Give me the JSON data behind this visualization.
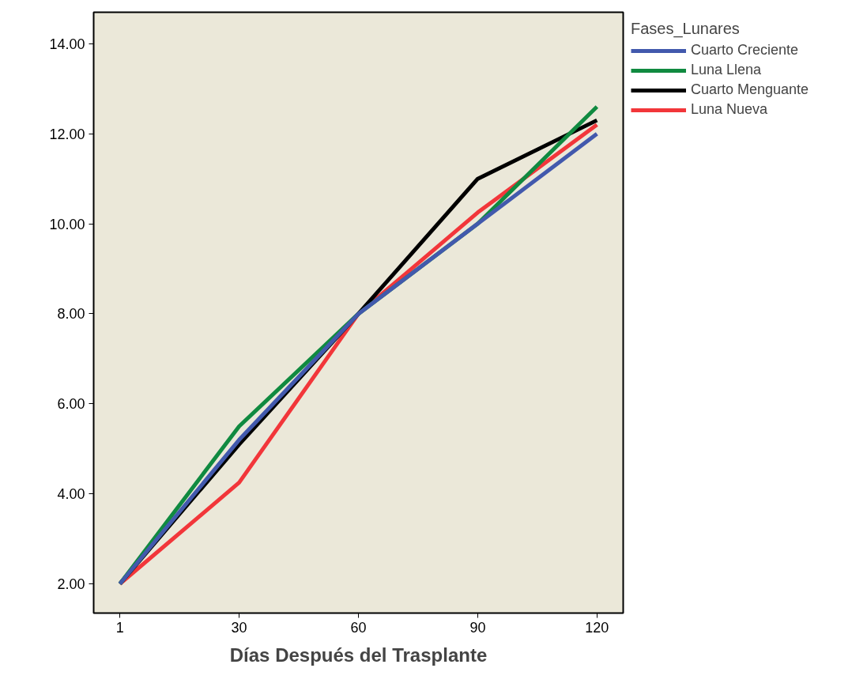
{
  "chart_data": {
    "type": "line",
    "xlabel": "Días Después del Trasplante",
    "legend_title": "Fases_Lunares",
    "legend": "right",
    "grid": false,
    "categories": [
      "1",
      "30",
      "60",
      "90",
      "120"
    ],
    "ylim": [
      1.35,
      14.7
    ],
    "yticks": [
      {
        "value": 2,
        "label": "2.00"
      },
      {
        "value": 4,
        "label": "4.00"
      },
      {
        "value": 6,
        "label": "6.00"
      },
      {
        "value": 8,
        "label": "8.00"
      },
      {
        "value": 10,
        "label": "10.00"
      },
      {
        "value": 12,
        "label": "12.00"
      },
      {
        "value": 14,
        "label": "14.00"
      }
    ],
    "line_style": "solid",
    "series": [
      {
        "name": "Cuarto Creciente",
        "color": "#4259ad",
        "values": [
          2,
          5.2,
          8,
          10,
          12
        ]
      },
      {
        "name": "Luna Llena",
        "color": "#108a40",
        "values": [
          2,
          5.5,
          8,
          10,
          12.6
        ]
      },
      {
        "name": "Cuarto Menguante",
        "color": "#000000",
        "values": [
          2,
          5.1,
          8,
          11,
          12.3
        ]
      },
      {
        "name": "Luna Nueva",
        "color": "#f2363a",
        "values": [
          2,
          4.25,
          8,
          10.25,
          12.2
        ]
      }
    ]
  }
}
